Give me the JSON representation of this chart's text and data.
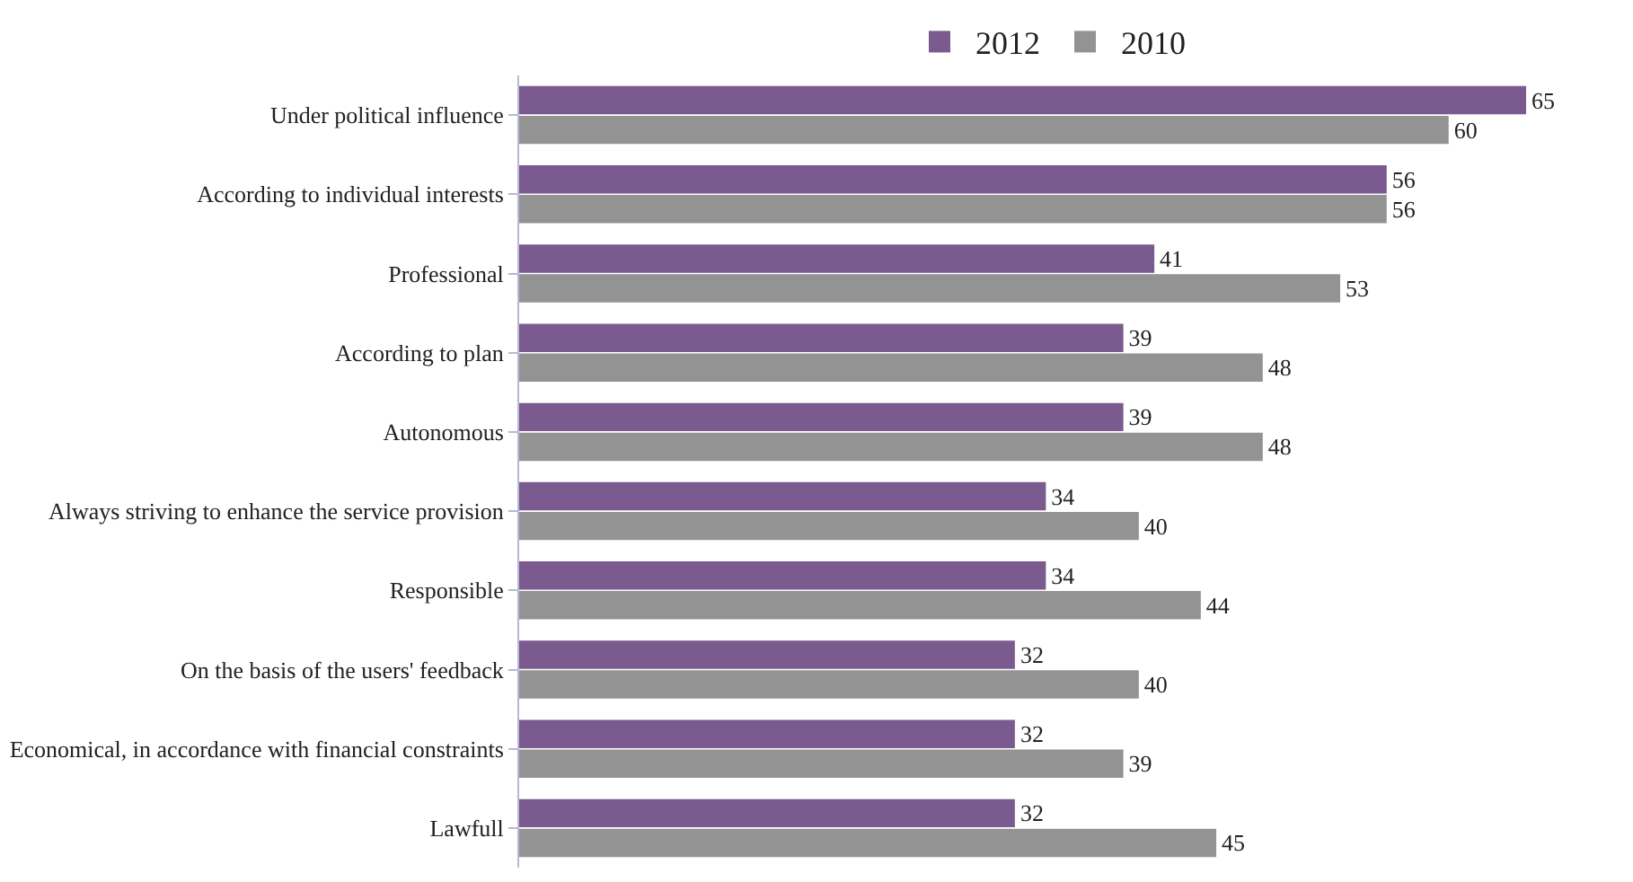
{
  "chart_data": {
    "type": "bar",
    "orientation": "horizontal",
    "data_labels": true,
    "legend": "top",
    "grid": false,
    "categories": [
      "Under political influence",
      "According to individual interests",
      "Professional",
      "According to plan",
      "Autonomous",
      "Always striving to enhance the service provision",
      "Responsible",
      "On the basis of the users' feedback",
      "Economical, in accordance with financial constraints",
      "Lawfull"
    ],
    "series": [
      {
        "name": "2012",
        "color": "#7b5a8f",
        "values": [
          65,
          56,
          41,
          39,
          39,
          34,
          34,
          32,
          32,
          32
        ]
      },
      {
        "name": "2010",
        "color": "#939393",
        "values": [
          60,
          56,
          53,
          48,
          48,
          40,
          44,
          40,
          39,
          45
        ]
      }
    ]
  }
}
